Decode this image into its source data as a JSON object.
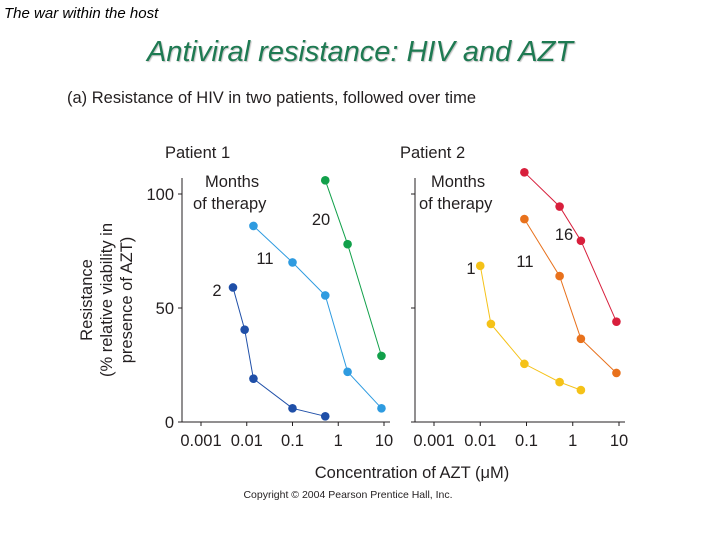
{
  "slide": {
    "header": "The war within the host",
    "title": "Antiviral resistance: HIV and AZT"
  },
  "chart_data": {
    "type": "scatter",
    "title": "(a) Resistance of HIV in two patients, followed over time",
    "xlabel": "Concentration of AZT (μM)",
    "ylabel_lines": [
      "Resistance",
      "(% relative viability in",
      "presence of AZT)"
    ],
    "x_scale": "log",
    "xlim": [
      0.001,
      10
    ],
    "ylim": [
      0,
      100
    ],
    "x_ticks": [
      0.001,
      0.01,
      0.1,
      1,
      10
    ],
    "x_tick_labels": [
      "0.001",
      "0.01",
      "0.1",
      "1",
      "10"
    ],
    "y_ticks": [
      0,
      50,
      100
    ],
    "y_tick_labels": [
      "0",
      "50",
      "100"
    ],
    "legend_title_lines": [
      "Months",
      "of therapy"
    ],
    "panels": [
      {
        "name": "Patient 1",
        "series": [
          {
            "name": "2",
            "color": "#1f4fa8",
            "x": [
              0.005,
              0.009,
              0.014,
              0.1,
              0.52
            ],
            "y": [
              59,
              40.5,
              19,
              6,
              2.5
            ]
          },
          {
            "name": "11",
            "color": "#2e9be0",
            "x": [
              0.014,
              0.1,
              0.52,
              1.6,
              8.8
            ],
            "y": [
              86,
              70,
              55.5,
              22,
              6
            ]
          },
          {
            "name": "20",
            "color": "#11a04a",
            "x": [
              0.52,
              1.6,
              8.8
            ],
            "y": [
              106,
              78,
              29
            ]
          }
        ]
      },
      {
        "name": "Patient 2",
        "series": [
          {
            "name": "1",
            "color": "#f5c218",
            "x": [
              0.01,
              0.017,
              0.09,
              0.52,
              1.5
            ],
            "y": [
              68.5,
              43,
              25.5,
              17.5,
              14
            ]
          },
          {
            "name": "11",
            "color": "#e8711c",
            "x": [
              0.09,
              0.52,
              1.5,
              8.8
            ],
            "y": [
              89,
              64,
              36.5,
              21.5
            ]
          },
          {
            "name": "16",
            "color": "#d81f3c",
            "x": [
              0.09,
              0.52,
              1.5,
              8.8
            ],
            "y": [
              109.5,
              94.5,
              79.5,
              44
            ]
          }
        ]
      }
    ],
    "copyright": "Copyright © 2004 Pearson Prentice Hall, Inc."
  }
}
